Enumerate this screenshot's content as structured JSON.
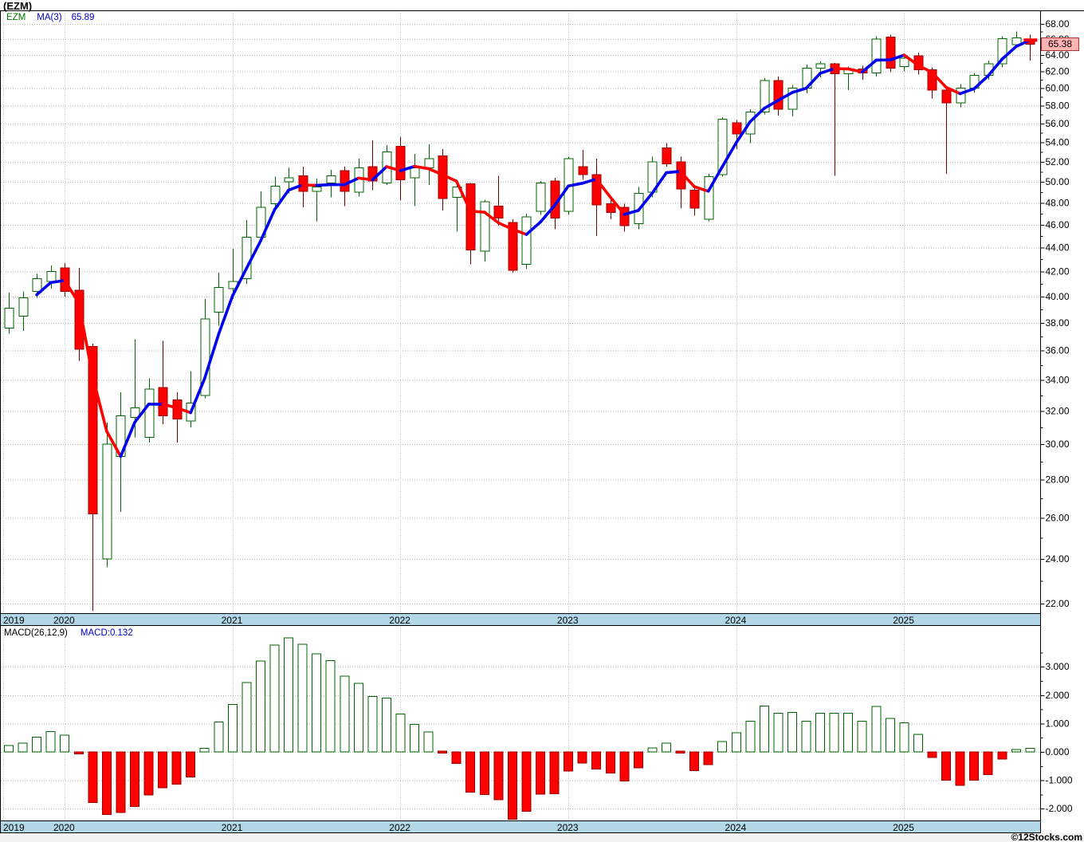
{
  "window": {
    "title": "(EZM)"
  },
  "price_pane": {
    "legend": {
      "symbol": "EZM",
      "ma_label": "MA(3)",
      "ma_value": "65.89"
    },
    "last_price": "65.38",
    "y_axis_labels": [
      "68.00",
      "66.00",
      "64.00",
      "62.00",
      "60.00",
      "58.00",
      "56.00",
      "54.00",
      "52.00",
      "50.00",
      "48.00",
      "46.00",
      "44.00",
      "42.00",
      "40.00",
      "38.00",
      "36.00",
      "34.00",
      "32.00",
      "30.00",
      "28.00",
      "26.00",
      "24.00",
      "22.00"
    ]
  },
  "macd_pane": {
    "label": "MACD(26,12,9)",
    "value_label": "MACD:0.132",
    "y_axis_labels": [
      "3.000",
      "2.000",
      "1.000",
      "0.000",
      "-1.000",
      "-2.000"
    ]
  },
  "time_axis": {
    "years": [
      "2019",
      "2020",
      "2021",
      "2022",
      "2023",
      "2024",
      "2025"
    ]
  },
  "watermark": "©12Stocks.com",
  "colors": {
    "up": "#006400",
    "up_fill": "#ffffff",
    "down": "#ff0000",
    "down_border": "#990000",
    "wick_down": "#700000",
    "ma_up": "#0000ee",
    "ma_down": "#ff0000",
    "grid": "#b5b5b5",
    "strip": "#b2d8e7",
    "last_price_bg": "#ffb3b3",
    "legend_symbol": "#007700",
    "legend_ma": "#0000cc"
  },
  "chart_data": {
    "type": "candlestick_with_macd_histogram",
    "symbol": "EZM",
    "interval": "monthly",
    "price_scale": "log",
    "price_ylim": [
      21.6,
      69.7
    ],
    "macd_ylim": [
      -2.45,
      3.65
    ],
    "legend_ma_period": 3,
    "last_close": 65.38,
    "last_ma3": 65.89,
    "last_macd": 0.132,
    "months": [
      {
        "t": "2019-09",
        "o": 37.6,
        "h": 40.3,
        "l": 37.2,
        "c": 39.1,
        "m": 0.23
      },
      {
        "t": "2019-10",
        "o": 38.5,
        "h": 40.4,
        "l": 37.4,
        "c": 39.9,
        "m": 0.31
      },
      {
        "t": "2019-11",
        "o": 40.4,
        "h": 41.8,
        "l": 39.9,
        "c": 41.4,
        "m": 0.52
      },
      {
        "t": "2019-12",
        "o": 41.2,
        "h": 42.5,
        "l": 40.6,
        "c": 42.0,
        "m": 0.72
      },
      {
        "t": "2020-01",
        "o": 42.3,
        "h": 42.7,
        "l": 40.0,
        "c": 40.4,
        "m": 0.59
      },
      {
        "t": "2020-02",
        "o": 40.5,
        "h": 42.3,
        "l": 35.3,
        "c": 36.1,
        "m": -0.07
      },
      {
        "t": "2020-03",
        "o": 36.3,
        "h": 36.5,
        "l": 21.7,
        "c": 26.2,
        "m": -1.78
      },
      {
        "t": "2020-04",
        "o": 24.0,
        "h": 31.3,
        "l": 23.6,
        "c": 30.0,
        "m": -2.2
      },
      {
        "t": "2020-05",
        "o": 29.3,
        "h": 33.2,
        "l": 26.3,
        "c": 31.7,
        "m": -2.13
      },
      {
        "t": "2020-06",
        "o": 31.6,
        "h": 36.8,
        "l": 30.4,
        "c": 32.2,
        "m": -1.92
      },
      {
        "t": "2020-07",
        "o": 30.4,
        "h": 34.1,
        "l": 30.1,
        "c": 33.4,
        "m": -1.52
      },
      {
        "t": "2020-08",
        "o": 33.5,
        "h": 36.7,
        "l": 31.2,
        "c": 31.7,
        "m": -1.26
      },
      {
        "t": "2020-09",
        "o": 32.7,
        "h": 33.2,
        "l": 30.1,
        "c": 31.5,
        "m": -1.14
      },
      {
        "t": "2020-10",
        "o": 31.4,
        "h": 34.6,
        "l": 31.0,
        "c": 32.5,
        "m": -0.89
      },
      {
        "t": "2020-11",
        "o": 33.0,
        "h": 39.8,
        "l": 32.8,
        "c": 38.3,
        "m": 0.12
      },
      {
        "t": "2020-12",
        "o": 38.8,
        "h": 41.9,
        "l": 37.8,
        "c": 40.7,
        "m": 1.06
      },
      {
        "t": "2021-01",
        "o": 40.6,
        "h": 43.9,
        "l": 39.8,
        "c": 41.2,
        "m": 1.67
      },
      {
        "t": "2021-02",
        "o": 41.4,
        "h": 46.4,
        "l": 41.0,
        "c": 44.9,
        "m": 2.44
      },
      {
        "t": "2021-03",
        "o": 44.9,
        "h": 49.1,
        "l": 44.5,
        "c": 47.6,
        "m": 3.2
      },
      {
        "t": "2021-04",
        "o": 47.9,
        "h": 50.5,
        "l": 47.5,
        "c": 49.6,
        "m": 3.76
      },
      {
        "t": "2021-05",
        "o": 50.0,
        "h": 51.4,
        "l": 48.9,
        "c": 50.4,
        "m": 4.01
      },
      {
        "t": "2021-06",
        "o": 50.6,
        "h": 51.5,
        "l": 47.6,
        "c": 49.1,
        "m": 3.79
      },
      {
        "t": "2021-07",
        "o": 49.1,
        "h": 50.3,
        "l": 46.3,
        "c": 49.5,
        "m": 3.46
      },
      {
        "t": "2021-08",
        "o": 49.9,
        "h": 51.2,
        "l": 48.5,
        "c": 50.6,
        "m": 3.21
      },
      {
        "t": "2021-09",
        "o": 51.1,
        "h": 51.5,
        "l": 47.7,
        "c": 49.1,
        "m": 2.67
      },
      {
        "t": "2021-10",
        "o": 49.0,
        "h": 52.3,
        "l": 48.6,
        "c": 51.4,
        "m": 2.41
      },
      {
        "t": "2021-11",
        "o": 51.5,
        "h": 54.2,
        "l": 49.2,
        "c": 50.1,
        "m": 1.95
      },
      {
        "t": "2021-12",
        "o": 49.9,
        "h": 53.7,
        "l": 49.7,
        "c": 53.0,
        "m": 1.89
      },
      {
        "t": "2022-01",
        "o": 53.6,
        "h": 54.6,
        "l": 48.2,
        "c": 50.2,
        "m": 1.34
      },
      {
        "t": "2022-02",
        "o": 50.4,
        "h": 52.8,
        "l": 47.7,
        "c": 51.4,
        "m": 0.97
      },
      {
        "t": "2022-03",
        "o": 51.4,
        "h": 53.8,
        "l": 49.7,
        "c": 52.3,
        "m": 0.7
      },
      {
        "t": "2022-04",
        "o": 52.6,
        "h": 53.3,
        "l": 47.3,
        "c": 48.4,
        "m": -0.04
      },
      {
        "t": "2022-05",
        "o": 48.5,
        "h": 50.0,
        "l": 45.4,
        "c": 49.5,
        "m": -0.41
      },
      {
        "t": "2022-06",
        "o": 49.8,
        "h": 49.9,
        "l": 42.6,
        "c": 43.8,
        "m": -1.42
      },
      {
        "t": "2022-07",
        "o": 43.7,
        "h": 48.3,
        "l": 42.8,
        "c": 48.1,
        "m": -1.5
      },
      {
        "t": "2022-08",
        "o": 47.7,
        "h": 50.6,
        "l": 45.9,
        "c": 46.6,
        "m": -1.68
      },
      {
        "t": "2022-09",
        "o": 46.2,
        "h": 46.5,
        "l": 41.9,
        "c": 42.1,
        "m": -2.37
      },
      {
        "t": "2022-10",
        "o": 42.6,
        "h": 47.0,
        "l": 42.2,
        "c": 46.7,
        "m": -2.09
      },
      {
        "t": "2022-11",
        "o": 47.2,
        "h": 50.1,
        "l": 46.9,
        "c": 49.9,
        "m": -1.49
      },
      {
        "t": "2022-12",
        "o": 50.1,
        "h": 50.4,
        "l": 45.6,
        "c": 46.6,
        "m": -1.47
      },
      {
        "t": "2023-01",
        "o": 47.2,
        "h": 52.5,
        "l": 46.9,
        "c": 52.3,
        "m": -0.68
      },
      {
        "t": "2023-02",
        "o": 51.5,
        "h": 53.2,
        "l": 50.2,
        "c": 50.7,
        "m": -0.39
      },
      {
        "t": "2023-03",
        "o": 50.7,
        "h": 52.3,
        "l": 45.0,
        "c": 47.8,
        "m": -0.61
      },
      {
        "t": "2023-04",
        "o": 47.9,
        "h": 48.5,
        "l": 46.5,
        "c": 47.1,
        "m": -0.75
      },
      {
        "t": "2023-05",
        "o": 47.6,
        "h": 47.9,
        "l": 45.4,
        "c": 45.9,
        "m": -1.03
      },
      {
        "t": "2023-06",
        "o": 46.1,
        "h": 49.5,
        "l": 45.6,
        "c": 48.9,
        "m": -0.56
      },
      {
        "t": "2023-07",
        "o": 49.0,
        "h": 52.5,
        "l": 48.5,
        "c": 52.0,
        "m": 0.14
      },
      {
        "t": "2023-08",
        "o": 53.4,
        "h": 53.9,
        "l": 51.5,
        "c": 51.8,
        "m": 0.31
      },
      {
        "t": "2023-09",
        "o": 52.0,
        "h": 52.5,
        "l": 47.5,
        "c": 49.3,
        "m": -0.02
      },
      {
        "t": "2023-10",
        "o": 49.2,
        "h": 49.5,
        "l": 46.8,
        "c": 47.5,
        "m": -0.66
      },
      {
        "t": "2023-11",
        "o": 46.5,
        "h": 50.8,
        "l": 46.3,
        "c": 50.5,
        "m": -0.45
      },
      {
        "t": "2023-12",
        "o": 50.7,
        "h": 56.7,
        "l": 50.5,
        "c": 56.5,
        "m": 0.37
      },
      {
        "t": "2024-01",
        "o": 56.1,
        "h": 56.4,
        "l": 53.3,
        "c": 54.9,
        "m": 0.68
      },
      {
        "t": "2024-02",
        "o": 54.9,
        "h": 57.6,
        "l": 53.9,
        "c": 57.3,
        "m": 1.08
      },
      {
        "t": "2024-03",
        "o": 57.3,
        "h": 61.2,
        "l": 57.0,
        "c": 60.9,
        "m": 1.62
      },
      {
        "t": "2024-04",
        "o": 60.9,
        "h": 61.4,
        "l": 56.9,
        "c": 57.6,
        "m": 1.36
      },
      {
        "t": "2024-05",
        "o": 57.6,
        "h": 60.4,
        "l": 56.8,
        "c": 60.0,
        "m": 1.39
      },
      {
        "t": "2024-06",
        "o": 60.0,
        "h": 62.8,
        "l": 59.4,
        "c": 62.4,
        "m": 1.08
      },
      {
        "t": "2024-07",
        "o": 62.4,
        "h": 63.2,
        "l": 61.3,
        "c": 62.9,
        "m": 1.36
      },
      {
        "t": "2024-08",
        "o": 62.9,
        "h": 63.0,
        "l": 50.6,
        "c": 61.7,
        "m": 1.36
      },
      {
        "t": "2024-09",
        "o": 61.7,
        "h": 62.6,
        "l": 59.8,
        "c": 62.3,
        "m": 1.36
      },
      {
        "t": "2024-10",
        "o": 62.3,
        "h": 62.7,
        "l": 61.0,
        "c": 61.8,
        "m": 1.08
      },
      {
        "t": "2024-11",
        "o": 61.8,
        "h": 66.4,
        "l": 61.4,
        "c": 66.0,
        "m": 1.6
      },
      {
        "t": "2024-12",
        "o": 66.3,
        "h": 66.6,
        "l": 61.9,
        "c": 62.4,
        "m": 1.18
      },
      {
        "t": "2025-01",
        "o": 62.6,
        "h": 64.1,
        "l": 62.0,
        "c": 63.6,
        "m": 1.02
      },
      {
        "t": "2025-02",
        "o": 63.9,
        "h": 64.3,
        "l": 61.6,
        "c": 62.2,
        "m": 0.62
      },
      {
        "t": "2025-03",
        "o": 62.2,
        "h": 62.5,
        "l": 58.8,
        "c": 59.8,
        "m": -0.2
      },
      {
        "t": "2025-04",
        "o": 59.8,
        "h": 60.0,
        "l": 50.8,
        "c": 58.3,
        "m": -1.0
      },
      {
        "t": "2025-05",
        "o": 58.3,
        "h": 60.5,
        "l": 57.8,
        "c": 60.0,
        "m": -1.18
      },
      {
        "t": "2025-06",
        "o": 60.0,
        "h": 61.8,
        "l": 59.5,
        "c": 61.5,
        "m": -1.0
      },
      {
        "t": "2025-07",
        "o": 61.5,
        "h": 63.3,
        "l": 61.0,
        "c": 62.9,
        "m": -0.8
      },
      {
        "t": "2025-08",
        "o": 62.9,
        "h": 66.4,
        "l": 62.5,
        "c": 66.1,
        "m": -0.25
      },
      {
        "t": "2025-09",
        "o": 65.3,
        "h": 67.0,
        "l": 65.0,
        "c": 66.2,
        "m": 0.08
      },
      {
        "t": "2025-10",
        "o": 65.9,
        "h": 66.6,
        "l": 63.3,
        "c": 65.38,
        "m": 0.132
      }
    ]
  }
}
